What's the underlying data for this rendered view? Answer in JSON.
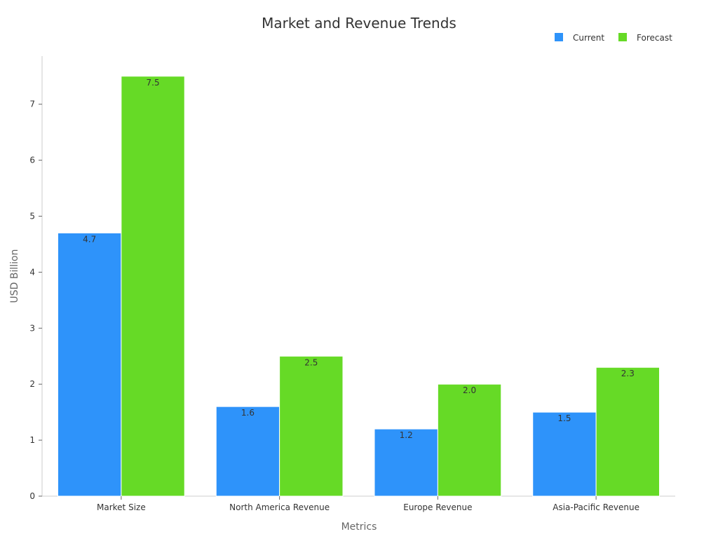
{
  "chart_data": {
    "type": "bar",
    "title": "Market and Revenue Trends",
    "xlabel": "Metrics",
    "ylabel": "USD Billion",
    "categories": [
      "Market Size",
      "North America Revenue",
      "Europe Revenue",
      "Asia-Pacific Revenue"
    ],
    "series": [
      {
        "name": "Current",
        "values": [
          4.7,
          1.6,
          1.2,
          1.5
        ],
        "color": "#2e93fa"
      },
      {
        "name": "Forecast",
        "values": [
          7.5,
          2.5,
          2.0,
          2.3
        ],
        "color": "#66da26"
      }
    ],
    "ylim": [
      0,
      7.86
    ],
    "yticks": [
      0,
      1,
      2,
      3,
      4,
      5,
      6,
      7
    ],
    "grid": false,
    "legend_position": "top-right",
    "data_labels": true
  }
}
